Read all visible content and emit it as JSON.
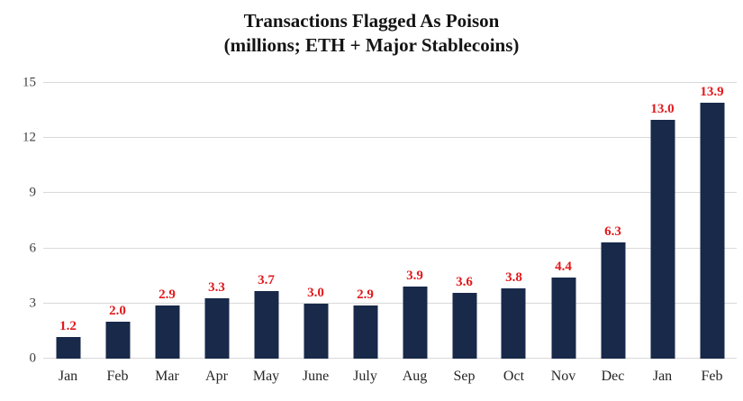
{
  "chart_data": {
    "type": "bar",
    "title": "Transactions Flagged As Poison",
    "subtitle": "(millions; ETH + Major Stablecoins)",
    "categories": [
      "Jan",
      "Feb",
      "Mar",
      "Apr",
      "May",
      "June",
      "July",
      "Aug",
      "Sep",
      "Oct",
      "Nov",
      "Dec",
      "Jan",
      "Feb"
    ],
    "values": [
      1.2,
      2.0,
      2.9,
      3.3,
      3.7,
      3.0,
      2.9,
      3.9,
      3.6,
      3.8,
      4.4,
      6.3,
      13.0,
      13.9
    ],
    "value_labels": [
      "1.2",
      "2.0",
      "2.9",
      "3.3",
      "3.7",
      "3.0",
      "2.9",
      "3.9",
      "3.6",
      "3.8",
      "4.4",
      "6.3",
      "13.0",
      "13.9"
    ],
    "ylim": [
      0,
      15
    ],
    "yticks": [
      0,
      3,
      6,
      9,
      12,
      15
    ],
    "grid": true,
    "legend": "none",
    "bar_color": "#18294A",
    "label_color": "#E2191C",
    "gridline_color": "#D9D9D9",
    "y_axis_text_color": "#404040",
    "x_axis_text_color": "#262626",
    "title_color": "#141414",
    "background_color": "#FFFFFF"
  }
}
